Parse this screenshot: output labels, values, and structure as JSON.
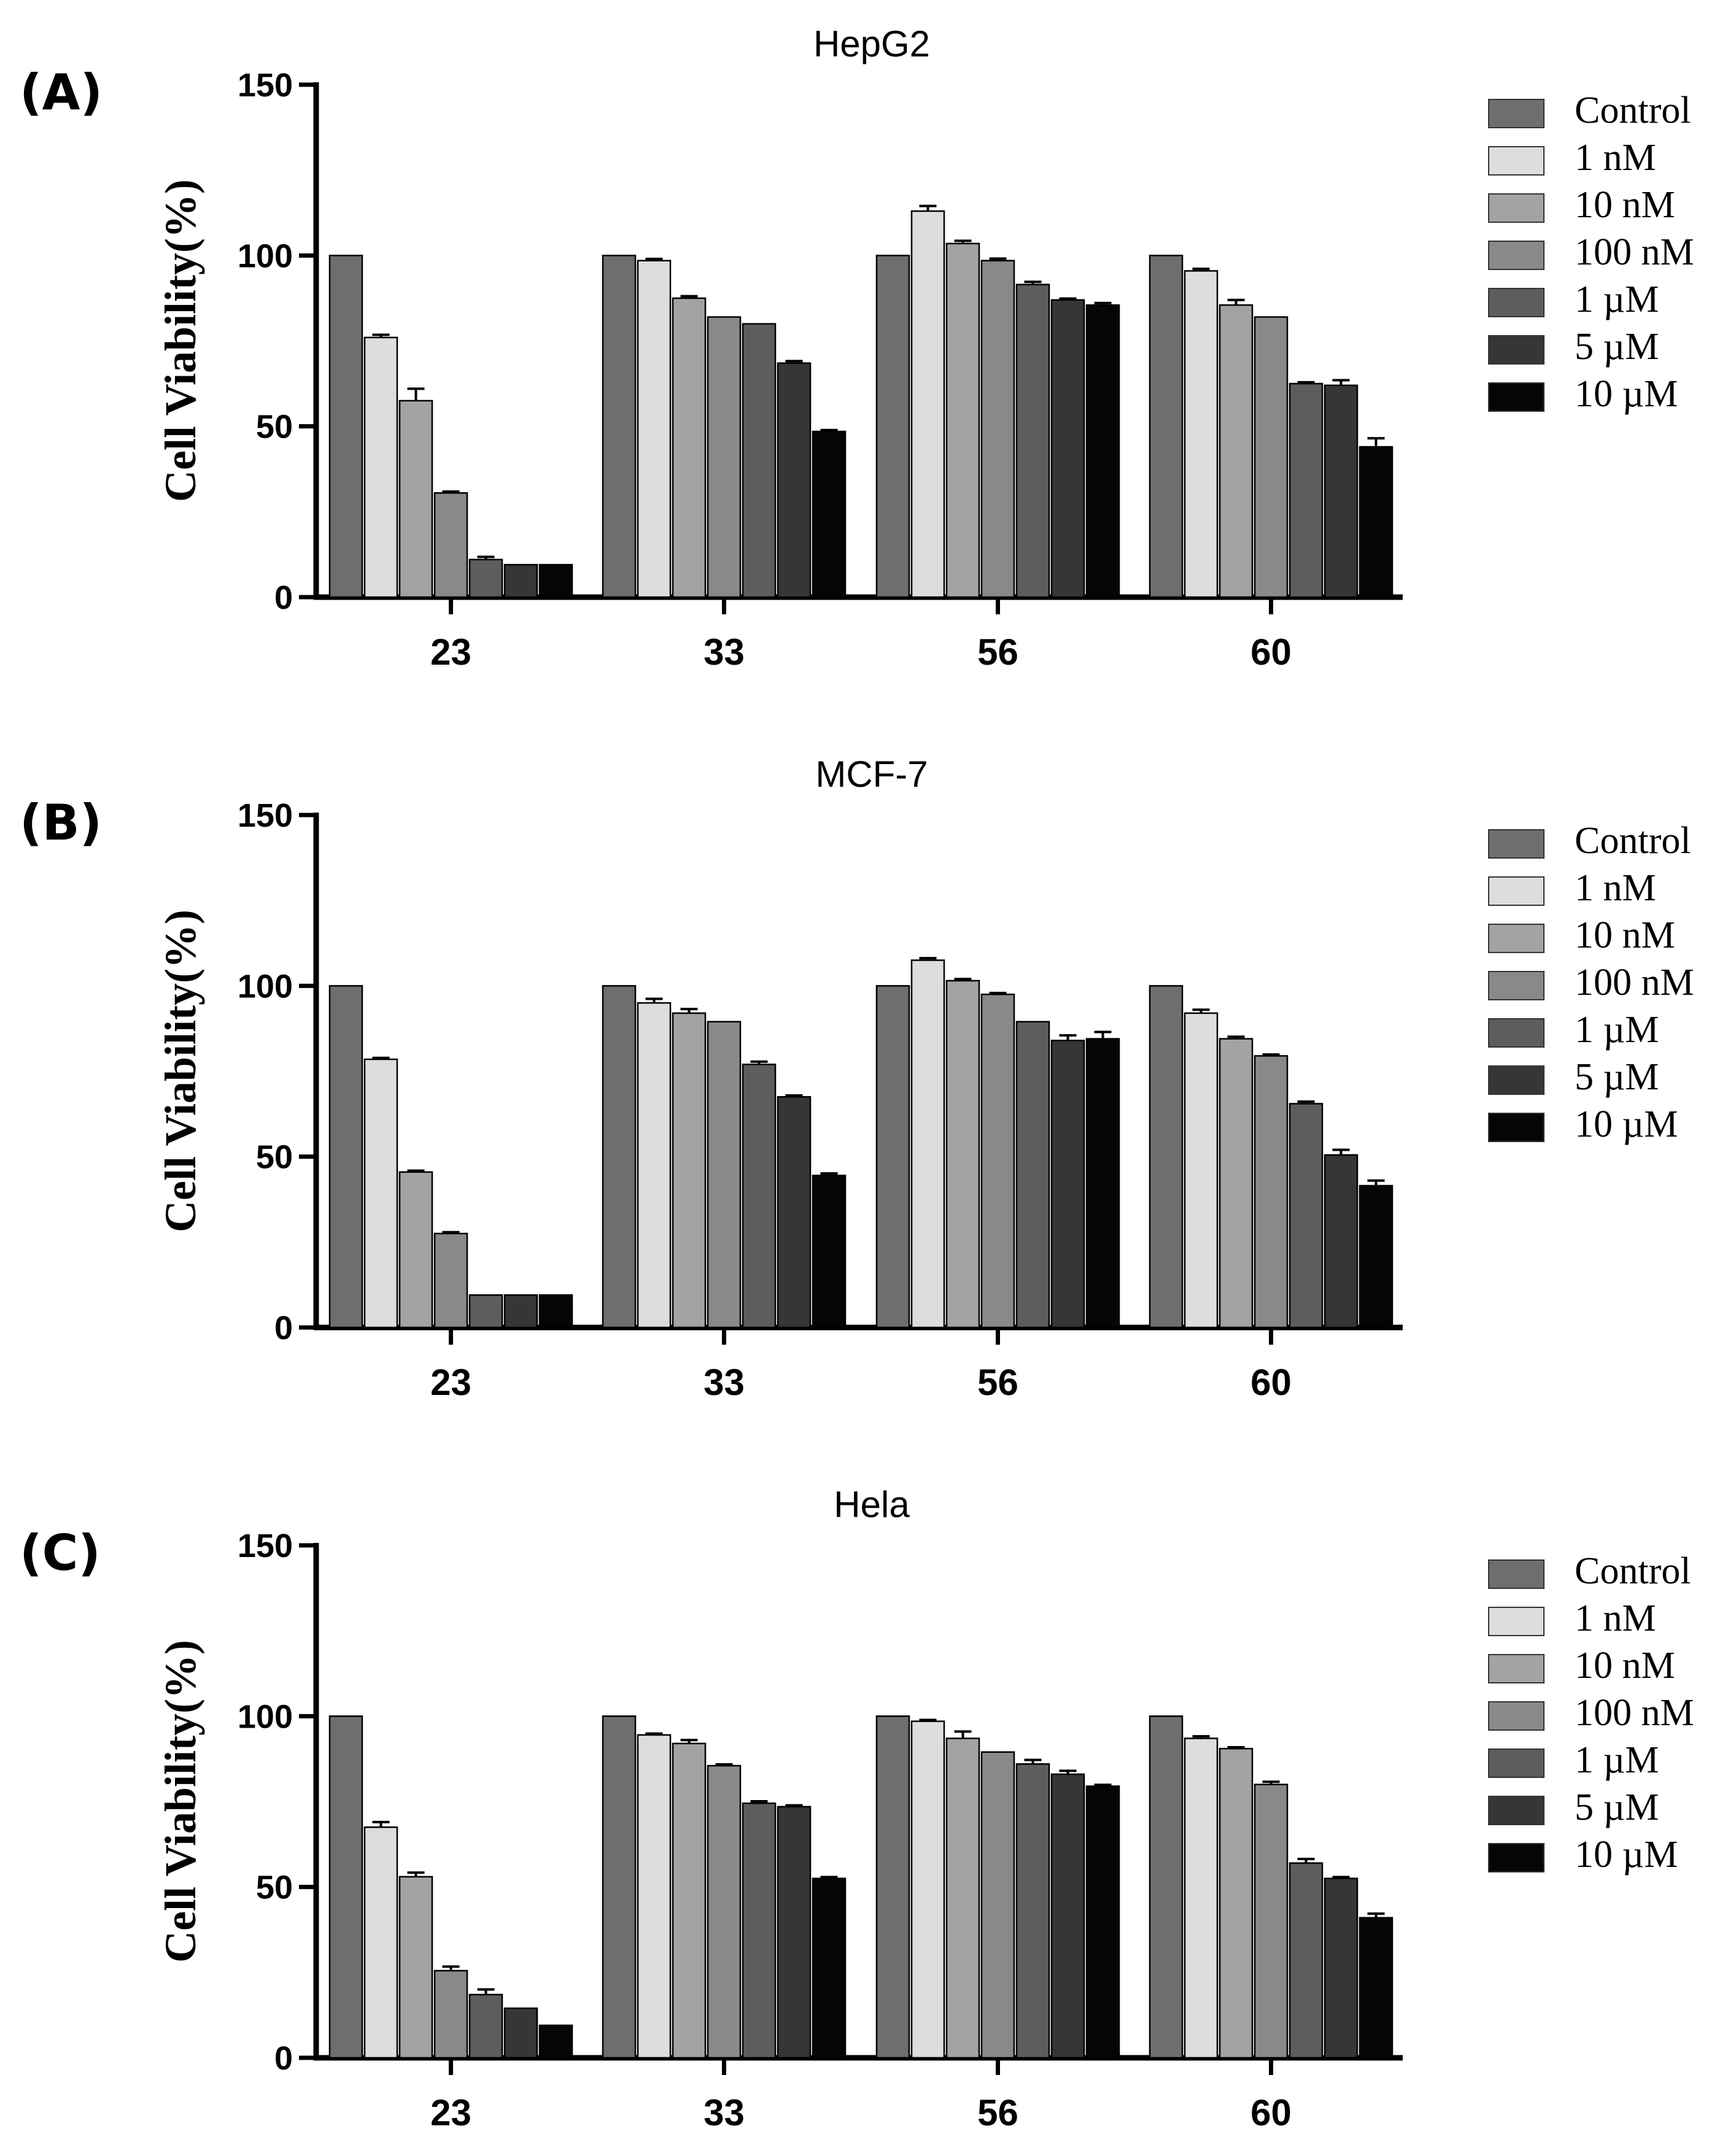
{
  "chart_data": [
    {
      "type": "bar",
      "panel": "(A)",
      "title": "HepG2",
      "xlabel": "",
      "ylabel": "Cell Viability(%)",
      "ylim": [
        0,
        150
      ],
      "yticks": [
        0,
        50,
        100,
        150
      ],
      "categories": [
        "23",
        "33",
        "56",
        "60"
      ],
      "legend_position": "right",
      "series": [
        {
          "name": "Control",
          "color": "#6e6e6e",
          "values": [
            100,
            100,
            100,
            100
          ],
          "errors": [
            0,
            0,
            0,
            0
          ]
        },
        {
          "name": "1 nM",
          "color": "#dddddd",
          "values": [
            76,
            98.5,
            113,
            95.5
          ],
          "errors": [
            0.8,
            0.5,
            1.5,
            0.6
          ]
        },
        {
          "name": "10 nM",
          "color": "#a3a3a3",
          "values": [
            57.5,
            87.5,
            103.5,
            85.5
          ],
          "errors": [
            3.5,
            0.6,
            0.8,
            1.5
          ]
        },
        {
          "name": "100 nM",
          "color": "#898989",
          "values": [
            30.5,
            82,
            98.5,
            82
          ],
          "errors": [
            0.4,
            0,
            0.6,
            0
          ]
        },
        {
          "name": "1 µM",
          "color": "#5d5d5d",
          "values": [
            11,
            80,
            91.5,
            62.5
          ],
          "errors": [
            0.8,
            0,
            0.8,
            0.4
          ]
        },
        {
          "name": "5 µM",
          "color": "#363636",
          "values": [
            9.5,
            68.5,
            87,
            62
          ],
          "errors": [
            0,
            0.6,
            0.4,
            1.5
          ]
        },
        {
          "name": "10 µM",
          "color": "#050505",
          "values": [
            9.5,
            48.5,
            85.5,
            44
          ],
          "errors": [
            0,
            0.4,
            0.6,
            2.5
          ]
        }
      ]
    },
    {
      "type": "bar",
      "panel": "(B)",
      "title": "MCF-7",
      "xlabel": "",
      "ylabel": "Cell Viability(%)",
      "ylim": [
        0,
        150
      ],
      "yticks": [
        0,
        50,
        100,
        150
      ],
      "categories": [
        "23",
        "33",
        "56",
        "60"
      ],
      "legend_position": "right",
      "series": [
        {
          "name": "Control",
          "color": "#6e6e6e",
          "values": [
            100,
            100,
            100,
            100
          ],
          "errors": [
            0,
            0,
            0,
            0
          ]
        },
        {
          "name": "1 nM",
          "color": "#dddddd",
          "values": [
            78.5,
            95,
            107.5,
            92
          ],
          "errors": [
            0.4,
            1.2,
            0.6,
            1.0
          ]
        },
        {
          "name": "10 nM",
          "color": "#a3a3a3",
          "values": [
            45.5,
            92,
            101.5,
            84.5
          ],
          "errors": [
            0.4,
            1.2,
            0.5,
            0.6
          ]
        },
        {
          "name": "100 nM",
          "color": "#898989",
          "values": [
            27.5,
            89.5,
            97.5,
            79.5
          ],
          "errors": [
            0.4,
            0,
            0.4,
            0.4
          ]
        },
        {
          "name": "1 µM",
          "color": "#5d5d5d",
          "values": [
            9.5,
            77,
            89.5,
            65.5
          ],
          "errors": [
            0,
            0.8,
            0,
            0.6
          ]
        },
        {
          "name": "5 µM",
          "color": "#363636",
          "values": [
            9.5,
            67.5,
            84,
            50.5
          ],
          "errors": [
            0,
            0.4,
            1.5,
            1.5
          ]
        },
        {
          "name": "10 µM",
          "color": "#050505",
          "values": [
            9.5,
            44.5,
            84.5,
            41.5
          ],
          "errors": [
            0,
            0.6,
            2.0,
            1.5
          ]
        }
      ]
    },
    {
      "type": "bar",
      "panel": "(C)",
      "title": "Hela",
      "xlabel": "",
      "ylabel": "Cell Viability(%)",
      "ylim": [
        0,
        150
      ],
      "yticks": [
        0,
        50,
        100,
        150
      ],
      "categories": [
        "23",
        "33",
        "56",
        "60"
      ],
      "legend_position": "right",
      "series": [
        {
          "name": "Control",
          "color": "#6e6e6e",
          "values": [
            100,
            100,
            100,
            100
          ],
          "errors": [
            0,
            0,
            0,
            0
          ]
        },
        {
          "name": "1 nM",
          "color": "#dddddd",
          "values": [
            67.5,
            94.5,
            98.5,
            93.5
          ],
          "errors": [
            1.5,
            0.4,
            0.4,
            0.6
          ]
        },
        {
          "name": "10 nM",
          "color": "#a3a3a3",
          "values": [
            53,
            92,
            93.5,
            90.5
          ],
          "errors": [
            1.2,
            1.0,
            2.0,
            0.4
          ]
        },
        {
          "name": "100 nM",
          "color": "#898989",
          "values": [
            25.5,
            85.5,
            89.5,
            80
          ],
          "errors": [
            1.2,
            0.4,
            0,
            0.8
          ]
        },
        {
          "name": "1 µM",
          "color": "#5d5d5d",
          "values": [
            18.5,
            74.5,
            86,
            57
          ],
          "errors": [
            1.5,
            0.6,
            1.2,
            1.2
          ]
        },
        {
          "name": "5 µM",
          "color": "#363636",
          "values": [
            14.5,
            73.5,
            83,
            52.5
          ],
          "errors": [
            0,
            0.4,
            1.0,
            0.4
          ]
        },
        {
          "name": "10 µM",
          "color": "#050505",
          "values": [
            9.5,
            52.5,
            79.5,
            41
          ],
          "errors": [
            0,
            0.4,
            0.4,
            1.2
          ]
        }
      ]
    }
  ]
}
